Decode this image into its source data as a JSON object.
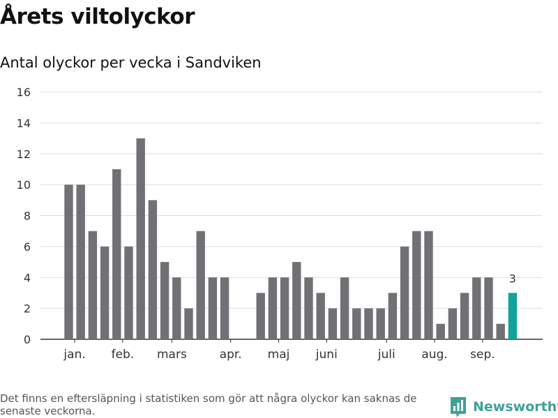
{
  "title": "Årets viltolyckor",
  "subtitle": "Antal olyckor per vecka i Sandviken",
  "footnote": "Det finns en eftersläpning i statistiken som gör att några olyckor kan saknas de senaste veckorna.",
  "brand": {
    "name": "Newsworthy",
    "icon": "newsworthy-logo-icon",
    "color": "#3ea198"
  },
  "colors": {
    "bar": "#717075",
    "highlight": "#0fa39a",
    "grid": "#dddddd",
    "axis": "#333333"
  },
  "chart_data": {
    "type": "bar",
    "title": "Antal olyckor per vecka i Sandviken",
    "xlabel": "",
    "ylabel": "",
    "ylim": [
      0,
      16
    ],
    "yticks": [
      0,
      2,
      4,
      6,
      8,
      10,
      12,
      14,
      16
    ],
    "grid": true,
    "weeks": [
      1,
      2,
      3,
      4,
      5,
      6,
      7,
      8,
      9,
      10,
      11,
      12,
      13,
      14,
      15,
      16,
      17,
      18,
      19,
      20,
      21,
      22,
      23,
      24,
      25,
      26,
      27,
      28,
      29,
      30,
      31,
      32,
      33,
      34,
      35,
      36,
      37,
      38
    ],
    "values": [
      10,
      10,
      7,
      6,
      11,
      6,
      13,
      9,
      5,
      4,
      2,
      7,
      4,
      4,
      null,
      null,
      3,
      4,
      4,
      5,
      4,
      3,
      2,
      4,
      2,
      2,
      2,
      3,
      6,
      7,
      7,
      1,
      2,
      3,
      4,
      4,
      1,
      3
    ],
    "highlight_index": 37,
    "highlight_label": "3",
    "month_labels": [
      {
        "label": "jan.",
        "pos": 0.5
      },
      {
        "label": "feb.",
        "pos": 4.5
      },
      {
        "label": "mars",
        "pos": 8.6
      },
      {
        "label": "apr.",
        "pos": 13.5
      },
      {
        "label": "maj",
        "pos": 17.5
      },
      {
        "label": "juni",
        "pos": 21.5
      },
      {
        "label": "juli",
        "pos": 26.5
      },
      {
        "label": "aug.",
        "pos": 30.5
      },
      {
        "label": "sep.",
        "pos": 34.5
      }
    ]
  }
}
